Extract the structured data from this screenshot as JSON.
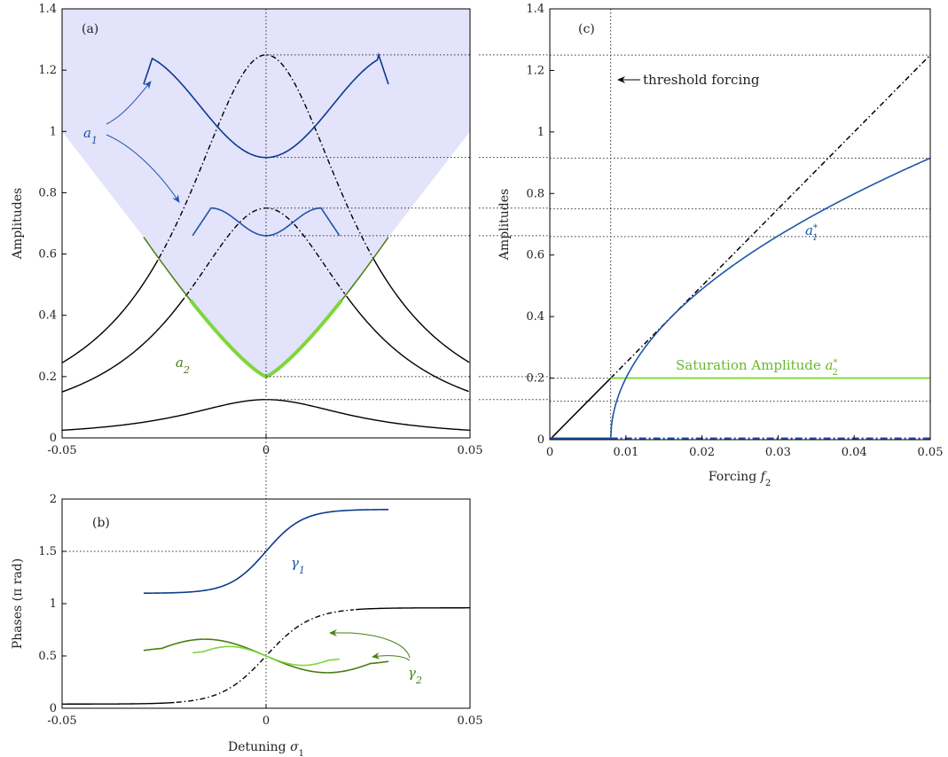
{
  "colors": {
    "black": "#000000",
    "blue": "#1f55a8",
    "blue_dark": "#0b3a8f",
    "green": "#4a7d14",
    "green_light": "#7fd63a",
    "region_fill": "#e3e3fb"
  },
  "chart_data": [
    {
      "panel": "(a)",
      "type": "line",
      "xlabel": "",
      "ylabel": "Amplitudes",
      "xlim": [
        -0.05,
        0.05
      ],
      "ylim": [
        0,
        1.4
      ],
      "x_ticks": [
        "-0.05",
        "0",
        "0.05"
      ],
      "y_ticks": [
        "0",
        "0.2",
        "0.4",
        "0.6",
        "0.8",
        "1",
        "1.2",
        "1.4"
      ],
      "annotations": {
        "a1": "a1",
        "a2": "a2"
      },
      "series": [
        {
          "style": "black-solid",
          "peak": 0.125,
          "at_edges": 0.025
        },
        {
          "style": "black-solid/dashdot",
          "peak": 0.75,
          "at_edges": 0.15
        },
        {
          "style": "black-solid/dashdot",
          "peak": 1.25,
          "at_edges": 0.245
        },
        {
          "style": "green",
          "shape": "V",
          "min": 0.2,
          "at_x_pm_0.03": 0.655
        },
        {
          "style": "blue",
          "shape": "W",
          "min": 0.915,
          "max": 1.25,
          "x_range": [
            -0.03,
            0.03
          ]
        },
        {
          "style": "blue",
          "shape": "W",
          "min": 0.66,
          "max": 0.75,
          "x_range": [
            -0.018,
            0.018
          ]
        }
      ],
      "reference_levels": [
        1.25,
        0.915,
        0.75,
        0.66,
        0.2,
        0.125
      ]
    },
    {
      "panel": "(b)",
      "type": "line",
      "xlabel": "Detuning σ1",
      "ylabel": "Phases (π rad)",
      "xlim": [
        -0.05,
        0.05
      ],
      "ylim": [
        0,
        2
      ],
      "x_ticks": [
        "-0.05",
        "0",
        "0.05"
      ],
      "y_ticks": [
        "0",
        "0.5",
        "1",
        "1.5",
        "2"
      ],
      "annotations": {
        "gamma1": "γ1",
        "gamma2": "γ2"
      },
      "series": [
        {
          "name": "γ1",
          "style": "blue",
          "x_range": [
            -0.03,
            0.03
          ],
          "y_start": 1.1,
          "y_mid": 1.5,
          "y_end": 1.9
        },
        {
          "style": "black-solid/dashdot",
          "y_start": 0.05,
          "y_mid": 0.5,
          "y_end": 0.94
        },
        {
          "name": "γ2",
          "style": "green",
          "x_range": [
            -0.03,
            0.03
          ],
          "y_mid": 0.5,
          "amplitude": 0.16
        },
        {
          "name": "γ2",
          "style": "green-light",
          "x_range": [
            -0.018,
            0.018
          ],
          "y_mid": 0.5,
          "amplitude": 0.09
        }
      ],
      "reference_levels": [
        1.5
      ]
    },
    {
      "panel": "(c)",
      "type": "line",
      "xlabel": "Forcing f2",
      "ylabel": "Amplitudes",
      "xlim": [
        0,
        0.05
      ],
      "ylim": [
        0,
        1.4
      ],
      "x_ticks": [
        "0",
        "0.01",
        "0.02",
        "0.03",
        "0.04",
        "0.05"
      ],
      "y_ticks": [
        "0",
        "0.2",
        "0.4",
        "0.6",
        "0.8",
        "1",
        "1.2",
        "1.4"
      ],
      "threshold_forcing": 0.008,
      "annotations": {
        "threshold": "threshold forcing",
        "a1_star": "a1*",
        "saturation": "Saturation Amplitude a2*"
      },
      "series": [
        {
          "style": "black",
          "points": [
            [
              0,
              0
            ],
            [
              0.05,
              1.25
            ]
          ]
        },
        {
          "name": "a1*",
          "style": "blue",
          "start": [
            0.008,
            0
          ],
          "end": [
            0.05,
            0.915
          ]
        },
        {
          "name": "a2*",
          "style": "green-light",
          "value": 0.2,
          "x_range": [
            0.008,
            0.05
          ]
        },
        {
          "style": "blue",
          "value": 0,
          "x_range": [
            0,
            0.05
          ]
        }
      ],
      "reference_levels": [
        1.25,
        0.915,
        0.75,
        0.66,
        0.2,
        0.125
      ]
    }
  ]
}
